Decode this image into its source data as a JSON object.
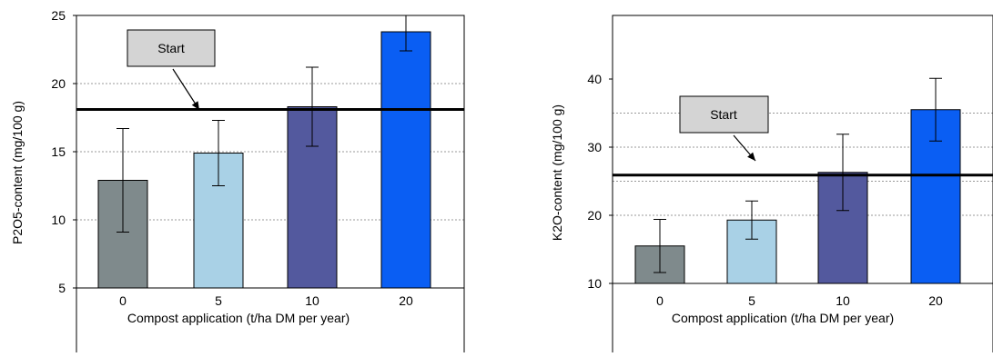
{
  "colors": {
    "cat0": "#7f8a8c",
    "cat5": "#a9d1e6",
    "cat10": "#53599e",
    "cat20": "#0a5ef3",
    "start_box": "#d4d4d4",
    "grid": "#999999"
  },
  "chart_data": [
    {
      "type": "bar",
      "categories": [
        "0",
        "5",
        "10",
        "20"
      ],
      "values": [
        12.9,
        14.9,
        18.3,
        23.8
      ],
      "errors": [
        3.8,
        2.4,
        2.9,
        1.4
      ],
      "ylabel": "P2O5-content (mg/100 g)",
      "xlabel": "Compost application (t/ha DM per year)",
      "yticks": [
        5,
        10,
        15,
        20,
        25
      ],
      "ylim": [
        5,
        25
      ],
      "grid": true,
      "start_line": 18.1,
      "start_label": "Start"
    },
    {
      "type": "bar",
      "categories": [
        "0",
        "5",
        "10",
        "20"
      ],
      "values": [
        15.5,
        19.3,
        26.3,
        35.5
      ],
      "errors": [
        3.9,
        2.8,
        5.6,
        4.6
      ],
      "ylabel": "K2O-content (mg/100 g)",
      "xlabel": "Compost application (t/ha DM per year)",
      "yticks": [
        10,
        20,
        30,
        40
      ],
      "ylim": [
        10,
        40
      ],
      "grid": true,
      "start_line": 25.9,
      "start_label": "Start"
    }
  ]
}
